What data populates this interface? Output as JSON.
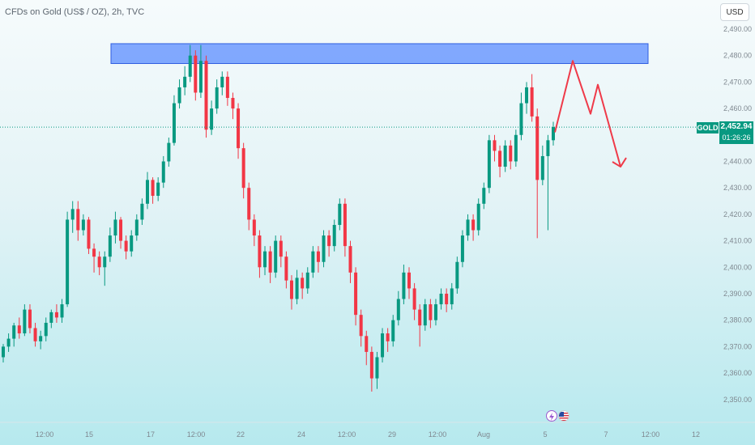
{
  "header": {
    "title": "CFDs on Gold (US$ / OZ), 2h, TVC"
  },
  "currency_button": {
    "label": "USD"
  },
  "price_marker": {
    "symbol": "GOLD",
    "price": "2,452.94",
    "countdown": "01:26:26",
    "color": "#089981"
  },
  "events": [
    {
      "name": "lightning-event-icon",
      "glyph": "⚡"
    },
    {
      "name": "us-flag-event-icon",
      "glyph": ""
    }
  ],
  "colors": {
    "up": "#089981",
    "down": "#f23645",
    "zone": "#5b8cff",
    "arrow": "#ef3a49"
  },
  "chart_data": {
    "type": "candlestick",
    "title": "CFDs on Gold (US$ / OZ), 2h, TVC",
    "ylim": [
      2345,
      2495
    ],
    "y_ticks": [
      "2,490.00",
      "2,480.00",
      "2,470.00",
      "2,460.00",
      "2,450.00",
      "2,440.00",
      "2,430.00",
      "2,420.00",
      "2,410.00",
      "2,400.00",
      "2,390.00",
      "2,380.00",
      "2,370.00",
      "2,360.00",
      "2,350.00"
    ],
    "x_ticks": [
      "12:00",
      "15",
      "17",
      "12:00",
      "22",
      "24",
      "12:00",
      "29",
      "12:00",
      "Aug",
      "5",
      "7",
      "12:00",
      "12"
    ],
    "current_price": 2452.94,
    "resistance_zone": {
      "low": 2477,
      "high": 2484
    },
    "projection_path": [
      2451,
      2478,
      2458,
      2469,
      2438
    ],
    "candles": [
      [
        2366,
        2370,
        2364,
        2371
      ],
      [
        2370,
        2373,
        2368,
        2375
      ],
      [
        2373,
        2378,
        2370,
        2379
      ],
      [
        2378,
        2375,
        2373,
        2381
      ],
      [
        2375,
        2384,
        2374,
        2386
      ],
      [
        2384,
        2377,
        2375,
        2386
      ],
      [
        2377,
        2372,
        2370,
        2379
      ],
      [
        2372,
        2374,
        2369,
        2376
      ],
      [
        2374,
        2379,
        2372,
        2381
      ],
      [
        2379,
        2383,
        2377,
        2384
      ],
      [
        2383,
        2381,
        2379,
        2386
      ],
      [
        2381,
        2386,
        2379,
        2388
      ],
      [
        2386,
        2418,
        2385,
        2421
      ],
      [
        2418,
        2422,
        2413,
        2425
      ],
      [
        2422,
        2414,
        2410,
        2425
      ],
      [
        2414,
        2418,
        2412,
        2420
      ],
      [
        2418,
        2407,
        2405,
        2419
      ],
      [
        2407,
        2404,
        2398,
        2409
      ],
      [
        2404,
        2400,
        2397,
        2406
      ],
      [
        2400,
        2404,
        2393,
        2406
      ],
      [
        2404,
        2412,
        2402,
        2415
      ],
      [
        2412,
        2418,
        2409,
        2421
      ],
      [
        2418,
        2410,
        2407,
        2419
      ],
      [
        2410,
        2406,
        2403,
        2412
      ],
      [
        2406,
        2412,
        2404,
        2414
      ],
      [
        2412,
        2418,
        2410,
        2420
      ],
      [
        2418,
        2424,
        2416,
        2426
      ],
      [
        2424,
        2433,
        2422,
        2436
      ],
      [
        2433,
        2427,
        2424,
        2434
      ],
      [
        2427,
        2432,
        2425,
        2434
      ],
      [
        2432,
        2440,
        2430,
        2442
      ],
      [
        2440,
        2447,
        2438,
        2449
      ],
      [
        2447,
        2462,
        2446,
        2465
      ],
      [
        2462,
        2468,
        2460,
        2471
      ],
      [
        2468,
        2472,
        2465,
        2476
      ],
      [
        2472,
        2480,
        2470,
        2484
      ],
      [
        2480,
        2466,
        2463,
        2482
      ],
      [
        2466,
        2478,
        2464,
        2484
      ],
      [
        2478,
        2452,
        2449,
        2480
      ],
      [
        2452,
        2460,
        2450,
        2463
      ],
      [
        2460,
        2468,
        2458,
        2471
      ],
      [
        2468,
        2472,
        2465,
        2474
      ],
      [
        2472,
        2464,
        2461,
        2474
      ],
      [
        2464,
        2460,
        2456,
        2466
      ],
      [
        2460,
        2445,
        2441,
        2462
      ],
      [
        2445,
        2430,
        2426,
        2447
      ],
      [
        2430,
        2418,
        2414,
        2432
      ],
      [
        2418,
        2412,
        2408,
        2420
      ],
      [
        2412,
        2400,
        2396,
        2414
      ],
      [
        2400,
        2406,
        2397,
        2408
      ],
      [
        2406,
        2398,
        2394,
        2408
      ],
      [
        2398,
        2410,
        2396,
        2412
      ],
      [
        2410,
        2404,
        2400,
        2412
      ],
      [
        2404,
        2395,
        2392,
        2406
      ],
      [
        2395,
        2388,
        2384,
        2397
      ],
      [
        2388,
        2396,
        2386,
        2399
      ],
      [
        2396,
        2392,
        2388,
        2398
      ],
      [
        2392,
        2398,
        2390,
        2400
      ],
      [
        2398,
        2406,
        2396,
        2408
      ],
      [
        2406,
        2402,
        2398,
        2408
      ],
      [
        2402,
        2412,
        2400,
        2414
      ],
      [
        2412,
        2408,
        2404,
        2414
      ],
      [
        2408,
        2416,
        2406,
        2418
      ],
      [
        2416,
        2424,
        2414,
        2426
      ],
      [
        2424,
        2408,
        2404,
        2426
      ],
      [
        2408,
        2398,
        2394,
        2410
      ],
      [
        2398,
        2382,
        2378,
        2400
      ],
      [
        2382,
        2374,
        2370,
        2384
      ],
      [
        2374,
        2368,
        2363,
        2376
      ],
      [
        2368,
        2358,
        2353,
        2370
      ],
      [
        2358,
        2366,
        2354,
        2368
      ],
      [
        2366,
        2375,
        2364,
        2377
      ],
      [
        2375,
        2372,
        2368,
        2377
      ],
      [
        2372,
        2380,
        2370,
        2382
      ],
      [
        2380,
        2388,
        2378,
        2391
      ],
      [
        2388,
        2398,
        2386,
        2401
      ],
      [
        2398,
        2392,
        2388,
        2400
      ],
      [
        2392,
        2384,
        2380,
        2394
      ],
      [
        2384,
        2378,
        2370,
        2386
      ],
      [
        2378,
        2386,
        2376,
        2388
      ],
      [
        2386,
        2380,
        2377,
        2388
      ],
      [
        2380,
        2386,
        2378,
        2388
      ],
      [
        2386,
        2390,
        2384,
        2392
      ],
      [
        2390,
        2386,
        2383,
        2392
      ],
      [
        2386,
        2392,
        2384,
        2394
      ],
      [
        2392,
        2402,
        2390,
        2404
      ],
      [
        2402,
        2412,
        2400,
        2414
      ],
      [
        2412,
        2418,
        2410,
        2420
      ],
      [
        2418,
        2414,
        2410,
        2420
      ],
      [
        2414,
        2424,
        2412,
        2426
      ],
      [
        2424,
        2430,
        2422,
        2432
      ],
      [
        2430,
        2448,
        2428,
        2450
      ],
      [
        2448,
        2444,
        2440,
        2450
      ],
      [
        2444,
        2438,
        2434,
        2446
      ],
      [
        2438,
        2446,
        2436,
        2448
      ],
      [
        2446,
        2440,
        2437,
        2448
      ],
      [
        2440,
        2450,
        2438,
        2452
      ],
      [
        2450,
        2462,
        2448,
        2466
      ],
      [
        2462,
        2468,
        2458,
        2470
      ],
      [
        2468,
        2457,
        2455,
        2473
      ],
      [
        2457,
        2433,
        2411,
        2460
      ],
      [
        2433,
        2442,
        2431,
        2446
      ],
      [
        2442,
        2448,
        2414,
        2450
      ],
      [
        2448,
        2453,
        2446,
        2455
      ]
    ]
  }
}
